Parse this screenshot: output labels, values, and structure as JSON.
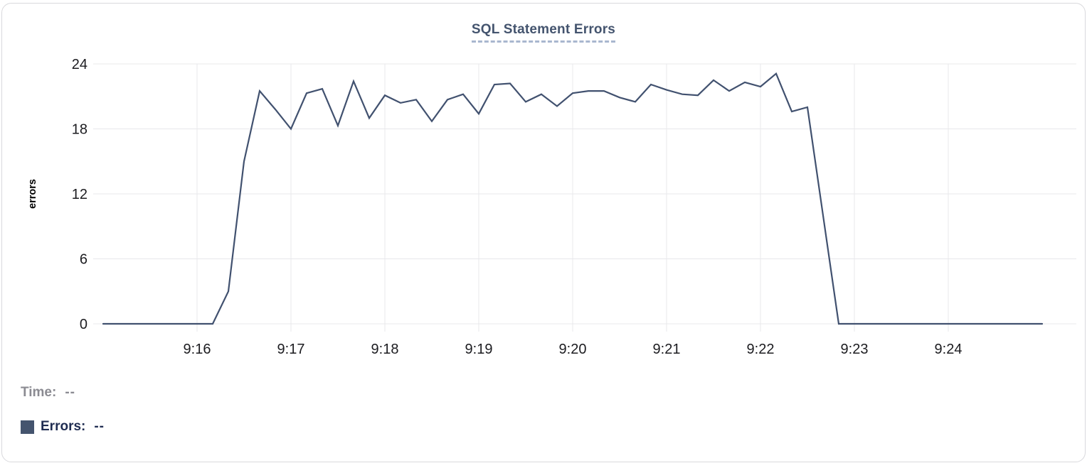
{
  "legend": {
    "time": {
      "label": "Time:",
      "value": "--"
    },
    "errors": {
      "label": "Errors:",
      "value": "--",
      "swatch_color": "#44546e"
    }
  },
  "chart_data": {
    "type": "line",
    "title": "SQL Statement Errors",
    "xlabel": "",
    "ylabel": "errors",
    "ylim": [
      0,
      24
    ],
    "yticks": [
      0,
      6,
      12,
      18,
      24
    ],
    "xticks": [
      "9:16",
      "9:17",
      "9:18",
      "9:19",
      "9:20",
      "9:21",
      "9:22",
      "9:23",
      "9:24"
    ],
    "x_range": [
      "9:15:00",
      "9:25:00"
    ],
    "grid": true,
    "legend_position": "bottom-left",
    "colors": {
      "line": "#41516f",
      "grid": "#e8e8eb",
      "tick_text": "#1c1c20",
      "axis_title": "#000000"
    },
    "series": [
      {
        "name": "Errors",
        "color": "#41516f",
        "points": [
          [
            "9:15:00",
            0
          ],
          [
            "9:15:10",
            0
          ],
          [
            "9:15:20",
            0
          ],
          [
            "9:15:30",
            0
          ],
          [
            "9:15:40",
            0
          ],
          [
            "9:15:50",
            0
          ],
          [
            "9:16:00",
            0
          ],
          [
            "9:16:10",
            0
          ],
          [
            "9:16:20",
            3
          ],
          [
            "9:16:30",
            15
          ],
          [
            "9:16:40",
            21.5
          ],
          [
            "9:16:50",
            19.8
          ],
          [
            "9:17:00",
            18
          ],
          [
            "9:17:10",
            21.3
          ],
          [
            "9:17:20",
            21.7
          ],
          [
            "9:17:30",
            18.3
          ],
          [
            "9:17:40",
            22.4
          ],
          [
            "9:17:50",
            19
          ],
          [
            "9:18:00",
            21.1
          ],
          [
            "9:18:10",
            20.4
          ],
          [
            "9:18:20",
            20.7
          ],
          [
            "9:18:30",
            18.7
          ],
          [
            "9:18:40",
            20.7
          ],
          [
            "9:18:50",
            21.2
          ],
          [
            "9:19:00",
            19.4
          ],
          [
            "9:19:10",
            22.1
          ],
          [
            "9:19:20",
            22.2
          ],
          [
            "9:19:30",
            20.5
          ],
          [
            "9:19:40",
            21.2
          ],
          [
            "9:19:50",
            20.1
          ],
          [
            "9:20:00",
            21.3
          ],
          [
            "9:20:10",
            21.5
          ],
          [
            "9:20:20",
            21.5
          ],
          [
            "9:20:30",
            20.9
          ],
          [
            "9:20:40",
            20.5
          ],
          [
            "9:20:50",
            22.1
          ],
          [
            "9:21:00",
            21.6
          ],
          [
            "9:21:10",
            21.2
          ],
          [
            "9:21:20",
            21.1
          ],
          [
            "9:21:30",
            22.5
          ],
          [
            "9:21:40",
            21.5
          ],
          [
            "9:21:50",
            22.3
          ],
          [
            "9:22:00",
            21.9
          ],
          [
            "9:22:10",
            23.1
          ],
          [
            "9:22:20",
            19.6
          ],
          [
            "9:22:30",
            20
          ],
          [
            "9:22:40",
            10
          ],
          [
            "9:22:50",
            0
          ],
          [
            "9:23:00",
            0
          ],
          [
            "9:23:10",
            0
          ],
          [
            "9:23:20",
            0
          ],
          [
            "9:23:30",
            0
          ],
          [
            "9:23:40",
            0
          ],
          [
            "9:23:50",
            0
          ],
          [
            "9:24:00",
            0
          ],
          [
            "9:24:10",
            0
          ],
          [
            "9:24:20",
            0
          ],
          [
            "9:24:30",
            0
          ],
          [
            "9:24:40",
            0
          ],
          [
            "9:24:50",
            0
          ],
          [
            "9:25:00",
            0
          ]
        ]
      }
    ]
  }
}
